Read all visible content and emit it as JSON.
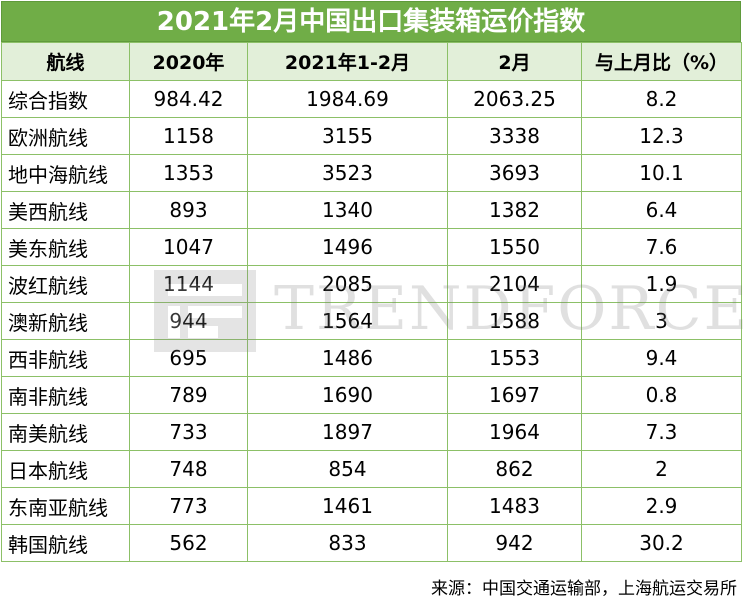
{
  "chart_data": {
    "type": "table",
    "title": "2021年2月中国出口集装箱运价指数",
    "columns": [
      "航线",
      "2020年",
      "2021年1-2月",
      "2月",
      "与上月比（%）"
    ],
    "rows": [
      [
        "综合指数",
        "984.42",
        "1984.69",
        "2063.25",
        "8.2"
      ],
      [
        "欧洲航线",
        "1158",
        "3155",
        "3338",
        "12.3"
      ],
      [
        "地中海航线",
        "1353",
        "3523",
        "3693",
        "10.1"
      ],
      [
        "美西航线",
        "893",
        "1340",
        "1382",
        "6.4"
      ],
      [
        "美东航线",
        "1047",
        "1496",
        "1550",
        "7.6"
      ],
      [
        "波红航线",
        "1144",
        "2085",
        "2104",
        "1.9"
      ],
      [
        "澳新航线",
        "944",
        "1564",
        "1588",
        "3"
      ],
      [
        "西非航线",
        "695",
        "1486",
        "1553",
        "9.4"
      ],
      [
        "南非航线",
        "789",
        "1690",
        "1697",
        "0.8"
      ],
      [
        "南美航线",
        "733",
        "1897",
        "1964",
        "7.3"
      ],
      [
        "日本航线",
        "748",
        "854",
        "862",
        "2"
      ],
      [
        "东南亚航线",
        "773",
        "1461",
        "1483",
        "2.9"
      ],
      [
        "韩国航线",
        "562",
        "833",
        "942",
        "30.2"
      ]
    ],
    "source": "来源：中国交通运输部，上海航运交易所"
  },
  "watermark": {
    "text": "TRENDFORCE",
    "color": "#777777"
  },
  "colors": {
    "title_bg": "#70ad47",
    "header_bg": "#e2efd9",
    "border": "#8cc067"
  }
}
